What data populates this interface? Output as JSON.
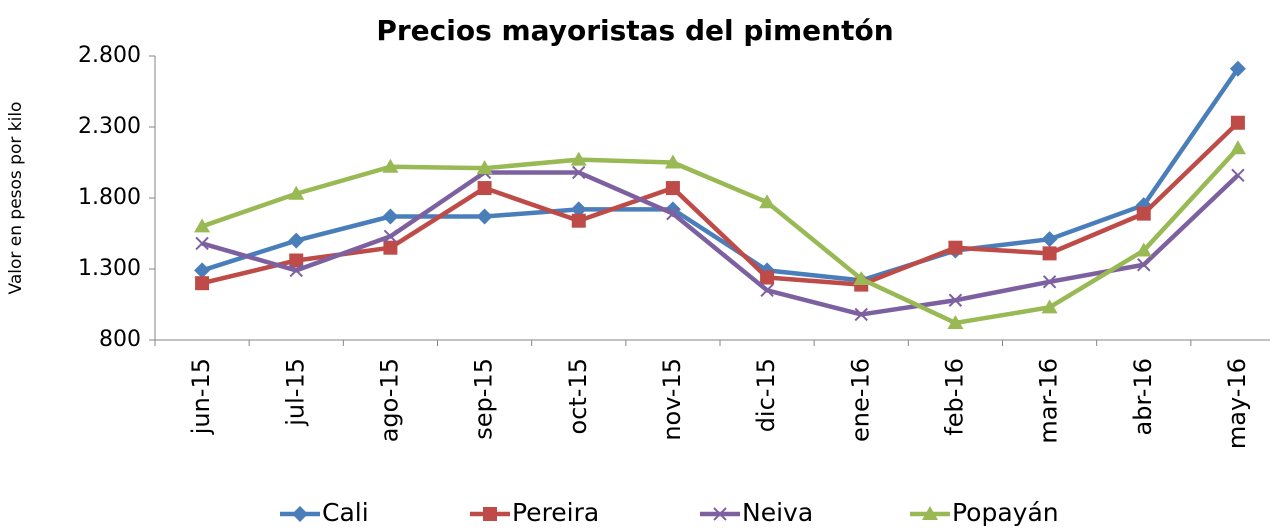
{
  "chart_data": {
    "type": "line",
    "title": "Precios mayoristas del pimentón",
    "y_label": "Valor en pesos por kilo",
    "categories": [
      "jun-15",
      "jul-15",
      "ago-15",
      "sep-15",
      "oct-15",
      "nov-15",
      "dic-15",
      "ene-16",
      "feb-16",
      "mar-16",
      "abr-16",
      "may-16"
    ],
    "series": [
      {
        "name": "Cali",
        "color": "#4a7ebb",
        "marker": "diamond",
        "values": [
          1290,
          1500,
          1670,
          1670,
          1720,
          1720,
          1290,
          1220,
          1430,
          1510,
          1750,
          2710
        ]
      },
      {
        "name": "Pereira",
        "color": "#be4b48",
        "marker": "square",
        "values": [
          1200,
          1360,
          1450,
          1870,
          1640,
          1870,
          1240,
          1190,
          1450,
          1410,
          1690,
          2330
        ]
      },
      {
        "name": "Neiva",
        "color": "#7d60a0",
        "marker": "x",
        "values": [
          1480,
          1290,
          1530,
          1980,
          1980,
          1690,
          1150,
          980,
          1080,
          1210,
          1330,
          1960
        ]
      },
      {
        "name": "Popayán",
        "color": "#98b954",
        "marker": "triangle",
        "values": [
          1600,
          1830,
          2020,
          2010,
          2070,
          2050,
          1770,
          1230,
          920,
          1030,
          1430,
          2150
        ]
      }
    ],
    "ylim": [
      800,
      2800
    ],
    "yticks": [
      {
        "value": 800,
        "label": "800"
      },
      {
        "value": 1300,
        "label": "1.300"
      },
      {
        "value": 1800,
        "label": "1.800"
      },
      {
        "value": 2300,
        "label": "2.300"
      },
      {
        "value": 2800,
        "label": "2.800"
      }
    ],
    "legend": "bottom"
  }
}
